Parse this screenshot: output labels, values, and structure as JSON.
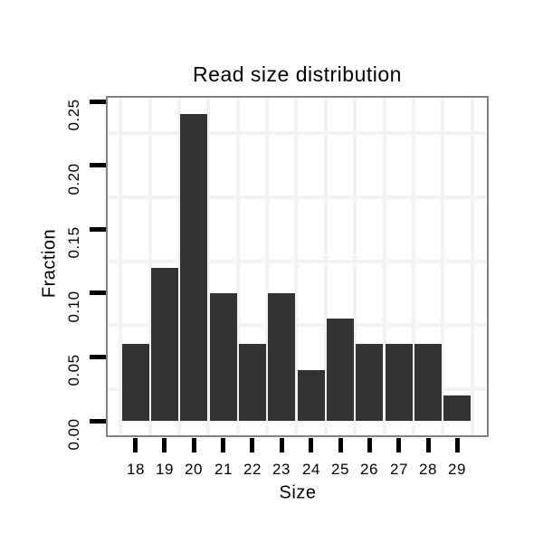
{
  "chart_data": {
    "type": "bar",
    "title": "Read size distribution",
    "xlabel": "Size",
    "ylabel": "Fraction",
    "categories": [
      "18",
      "19",
      "20",
      "21",
      "22",
      "23",
      "24",
      "25",
      "26",
      "27",
      "28",
      "29"
    ],
    "values": [
      0.06,
      0.12,
      0.24,
      0.1,
      0.06,
      0.1,
      0.04,
      0.08,
      0.06,
      0.06,
      0.06,
      0.02
    ],
    "y_ticks": [
      "0.00",
      "0.05",
      "0.10",
      "0.15",
      "0.20",
      "0.25"
    ],
    "ylim": [
      0,
      0.2553
    ],
    "legend": "none",
    "grid": "faint minor gridlines only: horizontal midway between y ticks, vertical at category boundaries",
    "colors": {
      "bar": "#333333",
      "grid": "#f3f3f3",
      "panel_border": "#828282",
      "tick": "#000000",
      "text": "#000000",
      "background": "#ffffff"
    }
  }
}
